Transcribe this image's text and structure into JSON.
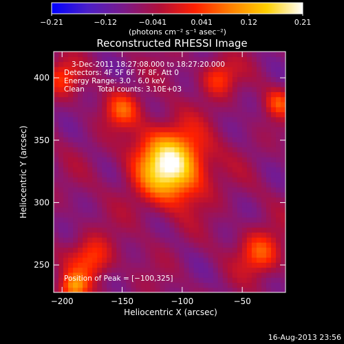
{
  "chart_data": {
    "type": "heatmap",
    "title": "Reconstructed RHESSI Image",
    "xlabel": "Heliocentric X (arcsec)",
    "ylabel": "Heliocentric Y (arcsec)",
    "xlim": [
      -207,
      -14
    ],
    "ylim": [
      228,
      421
    ],
    "xticks": [
      -200,
      -150,
      -100,
      -50
    ],
    "xtick_labels": [
      "−200",
      "−150",
      "−100",
      "−50"
    ],
    "yticks": [
      250,
      300,
      350,
      400
    ],
    "ytick_labels": [
      "250",
      "300",
      "350",
      "400"
    ],
    "colorbar": {
      "range": [
        -0.21,
        0.21
      ],
      "ticks": [
        -0.21,
        -0.12,
        -0.041,
        0.041,
        0.12,
        0.21
      ],
      "tick_labels": [
        "−0.21",
        "−0.12",
        "−0.041",
        "0.041",
        "0.12",
        "0.21"
      ],
      "units_label": "(photons cm⁻² s⁻¹ asec⁻²)",
      "stops": [
        "#0000ff",
        "#4b1fc8",
        "#7a1a8a",
        "#b00f3a",
        "#ff2000",
        "#ff8000",
        "#ffd000",
        "#ffffff"
      ]
    },
    "annotations": {
      "time_range": "3-Dec-2011 18:27:08.000 to 18:27:20.000",
      "detectors": "Detectors: 4F 5F 6F 7F 8F, Att 0",
      "energy": "Energy Range: 3.0 - 6.0 keV",
      "clean": "Clean",
      "counts": "Total counts: 3.10E+03",
      "peak": "Position of Peak = [−100,325]"
    },
    "peak_position": [
      -100,
      325
    ],
    "sources": [
      {
        "x": -110,
        "y": 330,
        "value": 0.21,
        "sigma": 20
      },
      {
        "x": -150,
        "y": 375,
        "value": 0.05,
        "sigma": 10
      },
      {
        "x": -35,
        "y": 260,
        "value": 0.06,
        "sigma": 12
      },
      {
        "x": -175,
        "y": 255,
        "value": 0.05,
        "sigma": 12
      },
      {
        "x": -190,
        "y": 232,
        "value": 0.09,
        "sigma": 8
      },
      {
        "x": -70,
        "y": 400,
        "value": 0.04,
        "sigma": 10
      },
      {
        "x": -20,
        "y": 380,
        "value": 0.04,
        "sigma": 8
      },
      {
        "x": -200,
        "y": 400,
        "value": 0.03,
        "sigma": 10
      }
    ]
  },
  "footer": {
    "timestamp": "16-Aug-2013 23:56"
  }
}
